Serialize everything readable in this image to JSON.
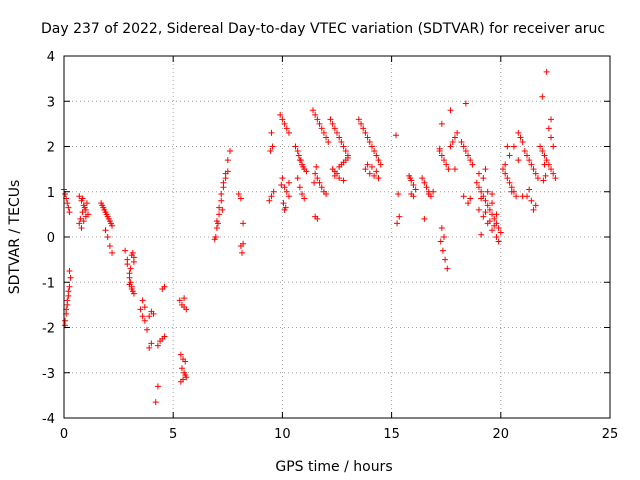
{
  "chart_data": {
    "type": "scatter",
    "title": "Day 237 of 2022, Sidereal Day-to-day VTEC variation (SDTVAR) for receiver aruc",
    "xlabel": "GPS time / hours",
    "ylabel": "SDTVAR / TECUs",
    "xlim": [
      0,
      25
    ],
    "ylim": [
      -4,
      4
    ],
    "xticks": [
      "0",
      "5",
      "10",
      "15",
      "20",
      "25"
    ],
    "yticks": [
      "-4",
      "-3",
      "-2",
      "-1",
      "0",
      "1",
      "2",
      "3",
      "4"
    ],
    "grid": true,
    "marker": "plus",
    "color": "#ff0000",
    "series": [
      {
        "name": "SDTVAR",
        "x": [
          0.0,
          0.05,
          0.1,
          0.15,
          0.2,
          0.25,
          0.05,
          0.1,
          0.15,
          0.2,
          0.25,
          0.3,
          0.05,
          0.1,
          0.2,
          0.15,
          0.25,
          0.7,
          0.8,
          0.9,
          1.0,
          1.1,
          0.75,
          0.85,
          0.95,
          1.05,
          0.7,
          0.8,
          0.9,
          1.0,
          0.85,
          1.7,
          1.8,
          1.9,
          2.0,
          2.1,
          2.2,
          1.75,
          1.85,
          1.95,
          2.05,
          2.15,
          2.1,
          2.2,
          1.9,
          2.0,
          2.8,
          2.9,
          3.0,
          3.05,
          3.1,
          3.15,
          3.2,
          2.9,
          3.0,
          3.1,
          3.2,
          3.0,
          3.1,
          3.15,
          3.2,
          3.05,
          3.5,
          3.6,
          3.7,
          3.8,
          3.6,
          3.7,
          3.9,
          4.0,
          4.1,
          3.9,
          4.0,
          4.3,
          4.4,
          4.5,
          4.6,
          4.5,
          4.6,
          4.2,
          4.3,
          5.3,
          5.4,
          5.5,
          5.6,
          5.35,
          5.45,
          5.55,
          5.4,
          5.5,
          5.6,
          5.35,
          5.45,
          5.55,
          5.5,
          6.9,
          7.0,
          7.1,
          7.2,
          7.3,
          7.4,
          7.5,
          7.0,
          7.1,
          7.2,
          7.3,
          7.4,
          7.5,
          7.6,
          6.95,
          7.05,
          7.25,
          8.0,
          8.1,
          8.2,
          8.1,
          8.15,
          8.2,
          9.4,
          9.5,
          9.6,
          9.5,
          9.45,
          9.55,
          9.9,
          10.0,
          10.1,
          10.2,
          10.3,
          10.0,
          10.1,
          10.2,
          10.3,
          10.05,
          10.15,
          9.95,
          10.1,
          10.3,
          10.6,
          10.7,
          10.8,
          10.9,
          11.0,
          11.1,
          10.7,
          10.8,
          10.9,
          11.0,
          10.75,
          10.85,
          10.95,
          11.4,
          11.5,
          11.6,
          11.7,
          11.8,
          11.9,
          12.0,
          12.1,
          11.5,
          11.6,
          11.7,
          11.8,
          11.9,
          12.0,
          11.5,
          11.6,
          11.45,
          11.55,
          12.2,
          12.3,
          12.4,
          12.5,
          12.6,
          12.7,
          12.8,
          12.9,
          13.0,
          12.3,
          12.4,
          12.5,
          12.6,
          12.7,
          12.8,
          12.9,
          13.0,
          12.4,
          12.6,
          12.8,
          13.5,
          13.6,
          13.7,
          13.8,
          13.9,
          14.0,
          14.1,
          14.2,
          14.3,
          14.4,
          14.5,
          13.8,
          14.0,
          14.2,
          14.4,
          13.9,
          14.1,
          14.3,
          15.2,
          15.3,
          15.35,
          15.25,
          15.8,
          15.9,
          16.0,
          16.1,
          15.9,
          16.0,
          15.85,
          16.4,
          16.5,
          16.6,
          16.7,
          16.8,
          16.9,
          16.5,
          16.7,
          17.2,
          17.3,
          17.4,
          17.5,
          17.6,
          17.7,
          17.8,
          17.9,
          18.0,
          17.25,
          17.35,
          17.45,
          17.55,
          17.3,
          17.4,
          17.2,
          17.3,
          17.7,
          17.9,
          18.2,
          18.3,
          18.4,
          18.5,
          18.6,
          18.7,
          18.3,
          18.5,
          18.6,
          18.4,
          18.9,
          19.0,
          19.1,
          19.2,
          19.3,
          19.4,
          19.5,
          19.6,
          19.7,
          19.8,
          19.9,
          20.0,
          19.0,
          19.2,
          19.4,
          19.6,
          19.8,
          19.1,
          19.3,
          19.5,
          19.7,
          19.9,
          19.2,
          19.4,
          19.6,
          19.0,
          19.3,
          19.1,
          19.8,
          19.6,
          20.1,
          20.2,
          20.3,
          20.4,
          20.5,
          20.6,
          20.7,
          20.8,
          20.9,
          21.0,
          20.2,
          20.4,
          20.6,
          20.8,
          21.0,
          20.3,
          20.5,
          21.1,
          21.2,
          21.3,
          21.4,
          21.5,
          21.6,
          21.7,
          21.2,
          21.4,
          21.6,
          21.5,
          21.3,
          21.8,
          21.9,
          22.0,
          22.1,
          22.2,
          22.3,
          22.4,
          22.5,
          21.9,
          22.1,
          22.3,
          22.2,
          22.3,
          22.4,
          21.95,
          22.05,
          22.0
        ],
        "y": [
          1.05,
          0.95,
          0.85,
          0.75,
          0.65,
          0.55,
          -1.95,
          -1.7,
          -1.5,
          -1.3,
          -1.1,
          -0.9,
          -1.85,
          -1.6,
          -1.2,
          -1.4,
          -0.75,
          0.9,
          0.8,
          0.7,
          0.6,
          0.5,
          0.4,
          0.55,
          0.65,
          0.75,
          0.3,
          0.2,
          0.35,
          0.45,
          0.85,
          0.75,
          0.65,
          0.55,
          0.45,
          0.35,
          0.25,
          0.7,
          0.6,
          0.5,
          0.4,
          0.3,
          -0.2,
          -0.35,
          0.15,
          0.0,
          -0.3,
          -0.6,
          -0.9,
          -1.0,
          -1.1,
          -1.2,
          -1.25,
          -0.5,
          -0.8,
          -0.4,
          -0.55,
          -1.05,
          -1.15,
          -0.35,
          -0.45,
          -0.7,
          -1.6,
          -1.75,
          -1.85,
          -2.05,
          -1.4,
          -1.55,
          -1.75,
          -1.65,
          -1.7,
          -2.45,
          -2.35,
          -2.4,
          -2.3,
          -2.25,
          -2.2,
          -1.15,
          -1.1,
          -3.65,
          -3.3,
          -1.4,
          -1.5,
          -1.55,
          -1.6,
          -2.6,
          -2.7,
          -2.75,
          -2.9,
          -3.0,
          -3.1,
          -3.2,
          -3.15,
          -3.05,
          -1.35,
          -0.05,
          0.2,
          0.5,
          0.8,
          1.1,
          1.3,
          1.45,
          0.35,
          0.65,
          0.95,
          1.2,
          1.4,
          1.7,
          1.9,
          0.0,
          0.3,
          0.6,
          0.95,
          0.85,
          0.3,
          -0.2,
          -0.35,
          -0.15,
          0.8,
          0.9,
          1.0,
          2.3,
          1.9,
          2.0,
          2.7,
          2.6,
          2.5,
          2.4,
          2.3,
          1.3,
          1.1,
          1.0,
          0.9,
          0.75,
          0.65,
          1.15,
          0.6,
          1.2,
          2.0,
          1.9,
          1.7,
          1.6,
          1.5,
          1.45,
          1.3,
          1.1,
          0.95,
          0.85,
          1.8,
          1.7,
          1.55,
          2.8,
          2.7,
          2.6,
          2.5,
          2.4,
          2.3,
          2.2,
          2.1,
          1.4,
          1.3,
          1.2,
          1.1,
          1.0,
          0.95,
          0.45,
          0.4,
          1.2,
          1.55,
          2.6,
          2.5,
          2.4,
          2.3,
          2.2,
          2.1,
          2.0,
          1.9,
          1.8,
          1.5,
          1.45,
          1.4,
          1.55,
          1.6,
          1.65,
          1.7,
          1.75,
          1.35,
          1.3,
          1.25,
          2.6,
          2.5,
          2.4,
          2.3,
          2.2,
          2.1,
          2.0,
          1.9,
          1.8,
          1.7,
          1.6,
          1.5,
          1.4,
          1.35,
          1.3,
          1.6,
          1.55,
          1.45,
          2.25,
          0.95,
          0.45,
          0.3,
          1.35,
          1.25,
          1.15,
          1.05,
          0.95,
          0.9,
          1.3,
          1.3,
          1.2,
          1.1,
          1.0,
          0.9,
          1.0,
          0.4,
          0.95,
          1.9,
          1.8,
          1.7,
          1.6,
          1.5,
          2.0,
          2.1,
          2.2,
          2.3,
          -0.1,
          -0.3,
          -0.5,
          -0.7,
          0.2,
          0.0,
          1.95,
          2.5,
          2.8,
          1.5,
          2.1,
          2.0,
          1.9,
          1.8,
          1.7,
          1.6,
          0.9,
          0.75,
          0.85,
          2.95,
          1.2,
          1.1,
          1.0,
          0.9,
          0.8,
          0.7,
          0.6,
          0.5,
          0.4,
          0.3,
          0.2,
          0.1,
          0.6,
          0.45,
          0.3,
          0.15,
          0.0,
          0.85,
          0.55,
          0.35,
          0.25,
          -0.1,
          1.3,
          1.0,
          0.75,
          1.4,
          1.5,
          0.05,
          0.5,
          0.95,
          1.5,
          1.4,
          1.3,
          1.2,
          1.1,
          1.0,
          0.9,
          2.3,
          2.2,
          2.1,
          1.6,
          1.8,
          2.0,
          1.7,
          0.9,
          2.0,
          1.0,
          1.9,
          1.8,
          1.7,
          1.6,
          1.5,
          1.4,
          1.3,
          0.9,
          0.8,
          0.7,
          0.6,
          1.05,
          2.0,
          1.9,
          1.8,
          1.7,
          1.6,
          1.5,
          1.4,
          1.3,
          3.1,
          3.65,
          2.6,
          2.4,
          2.2,
          2.0,
          1.25,
          1.35,
          1.6
        ]
      }
    ]
  }
}
